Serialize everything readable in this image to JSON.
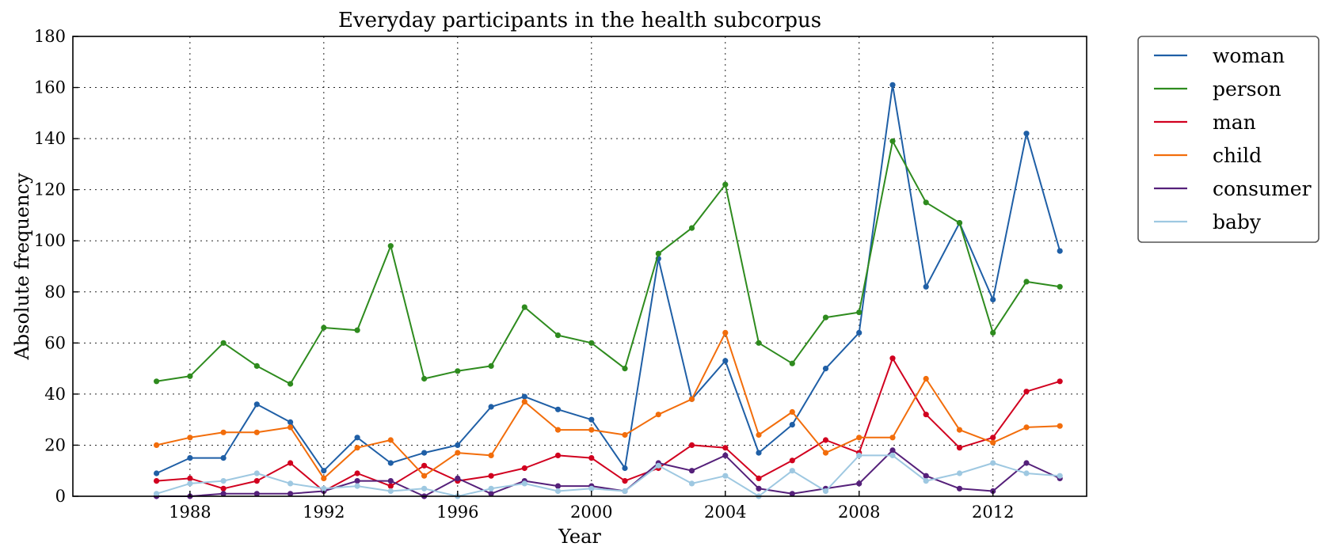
{
  "chart_data": {
    "type": "line",
    "title": "Everyday participants in the health subcorpus",
    "xlabel": "Year",
    "ylabel": "Absolute frequency",
    "xlim": [
      1984.5,
      2014.8
    ],
    "ylim": [
      0,
      180
    ],
    "xticks": [
      1988,
      1992,
      1996,
      2000,
      2004,
      2008,
      2012
    ],
    "yticks": [
      0,
      20,
      40,
      60,
      80,
      100,
      120,
      140,
      160,
      180
    ],
    "grid": true,
    "legend_position": "outside-top-right",
    "x": [
      1987,
      1988,
      1989,
      1990,
      1991,
      1992,
      1993,
      1994,
      1995,
      1996,
      1997,
      1998,
      1999,
      2000,
      2001,
      2002,
      2003,
      2004,
      2005,
      2006,
      2007,
      2008,
      2009,
      2010,
      2011,
      2012,
      2013,
      2014
    ],
    "series": [
      {
        "name": "woman",
        "color": "#1f5fa6",
        "values": [
          9,
          15,
          15,
          36,
          29,
          10,
          23,
          13,
          17,
          20,
          35,
          39,
          34,
          30,
          11,
          93,
          38,
          53,
          17,
          28,
          50,
          64,
          161,
          82,
          107,
          77,
          142,
          96
        ]
      },
      {
        "name": "person",
        "color": "#2e8b1e",
        "values": [
          45,
          47,
          60,
          51,
          44,
          66,
          65,
          98,
          46,
          49,
          51,
          74,
          63,
          60,
          50,
          95,
          105,
          122,
          60,
          52,
          70,
          72,
          139,
          115,
          107,
          64,
          84,
          82
        ]
      },
      {
        "name": "man",
        "color": "#d1001f",
        "values": [
          6,
          7,
          3,
          6,
          13,
          2,
          9,
          4,
          12,
          6,
          8,
          11,
          16,
          15,
          6,
          11,
          20,
          19,
          7,
          14,
          22,
          17,
          54,
          32,
          19,
          23,
          41,
          45
        ]
      },
      {
        "name": "child",
        "color": "#f26d0b",
        "values": [
          20,
          23,
          25,
          25,
          27,
          7,
          19,
          22,
          8,
          17,
          16,
          37,
          26,
          26,
          24,
          32,
          38,
          64,
          24,
          33,
          17,
          23,
          23,
          46,
          26,
          21,
          27,
          27.5
        ]
      },
      {
        "name": "consumer",
        "color": "#55207a",
        "values": [
          0,
          0,
          1,
          1,
          1,
          2,
          6,
          6,
          0,
          7,
          1,
          6,
          4,
          4,
          2,
          13,
          10,
          16,
          3,
          1,
          3,
          5,
          18,
          8,
          3,
          2,
          13,
          7
        ]
      },
      {
        "name": "baby",
        "color": "#9ec8e1",
        "values": [
          1,
          5,
          6,
          9,
          5,
          3,
          4,
          2,
          3,
          0,
          3,
          5,
          2,
          3,
          2,
          12,
          5,
          8,
          0,
          10,
          2,
          16,
          16,
          6,
          9,
          13,
          9,
          8
        ]
      }
    ]
  }
}
